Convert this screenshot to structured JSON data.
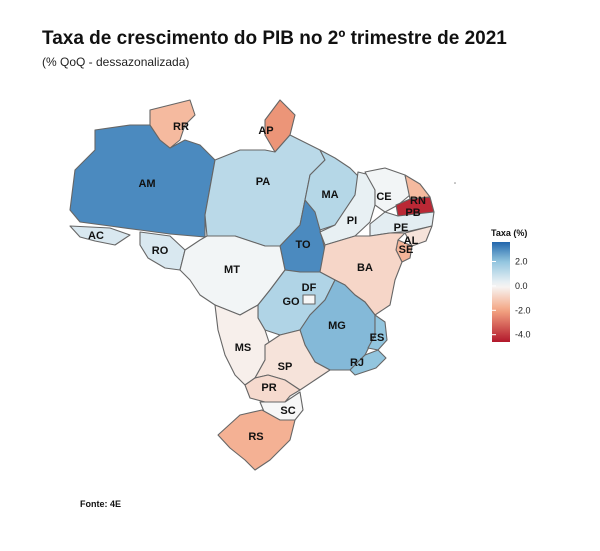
{
  "title": "Taxa de crescimento do PIB no 2º trimestre de 2021",
  "subtitle": "(% QoQ - dessazonalizada)",
  "source": "Fonte: 4E",
  "legend": {
    "title": "Taxa (%)",
    "ticks": [
      "2.0",
      "0.0",
      "-2.0",
      "-4.0"
    ],
    "tick_values": [
      2,
      0,
      -2,
      -4
    ],
    "range": [
      -4.6,
      3.6
    ]
  },
  "colors": {
    "high": "#2166ac",
    "mid_high": "#92c5de",
    "mid": "#f7f7f7",
    "mid_low": "#f4a582",
    "low": "#b2182b"
  },
  "chart_data": {
    "type": "choropleth",
    "title": "Taxa de crescimento do PIB no 2º trimestre de 2021",
    "unit": "% QoQ",
    "states": [
      {
        "code": "AM",
        "value": 3.0
      },
      {
        "code": "RR",
        "value": -1.5
      },
      {
        "code": "AP",
        "value": -2.3
      },
      {
        "code": "PA",
        "value": 1.2
      },
      {
        "code": "AC",
        "value": 0.6
      },
      {
        "code": "RO",
        "value": 0.6
      },
      {
        "code": "MA",
        "value": 1.3
      },
      {
        "code": "TO",
        "value": 3.0
      },
      {
        "code": "PI",
        "value": 0.3
      },
      {
        "code": "CE",
        "value": 0.1
      },
      {
        "code": "RN",
        "value": -1.5
      },
      {
        "code": "PB",
        "value": -4.3
      },
      {
        "code": "PE",
        "value": 0.4
      },
      {
        "code": "AL",
        "value": -0.5
      },
      {
        "code": "SE",
        "value": -1.6
      },
      {
        "code": "BA",
        "value": -0.8
      },
      {
        "code": "MT",
        "value": 0.1
      },
      {
        "code": "GO",
        "value": 1.4
      },
      {
        "code": "DF",
        "value": 0.0
      },
      {
        "code": "MG",
        "value": 2.2
      },
      {
        "code": "ES",
        "value": 2.0
      },
      {
        "code": "RJ",
        "value": 2.0
      },
      {
        "code": "MS",
        "value": -0.2
      },
      {
        "code": "SP",
        "value": -0.5
      },
      {
        "code": "PR",
        "value": -0.7
      },
      {
        "code": "SC",
        "value": 0.0
      },
      {
        "code": "RS",
        "value": -1.7
      }
    ]
  }
}
